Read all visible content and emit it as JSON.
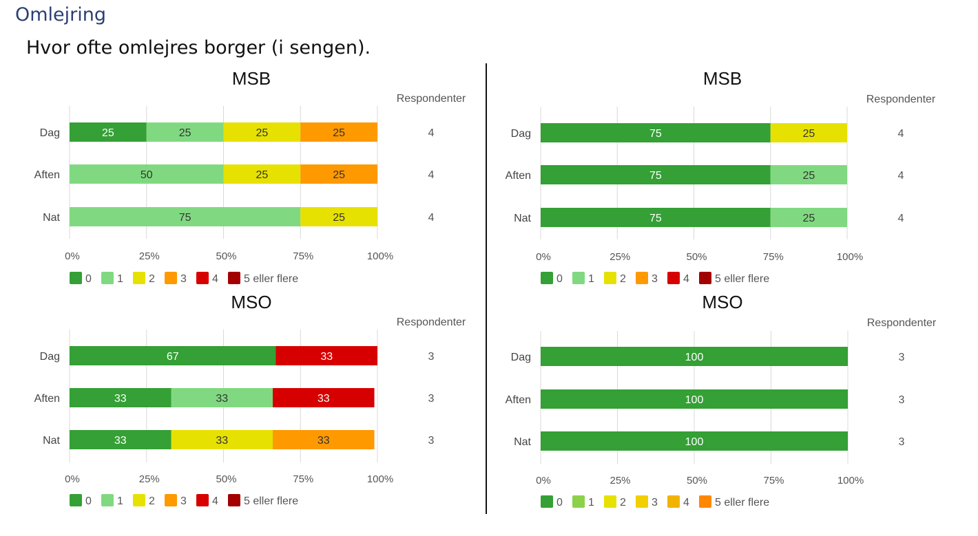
{
  "header": {
    "title": "Omlejring",
    "subtitle": "Hvor ofte omlejres borger (i sengen)."
  },
  "respondents_label": "Respondenter",
  "chart_data": [
    {
      "type": "bar",
      "stacked": true,
      "orientation": "horizontal",
      "percent": true,
      "title": "MSB",
      "categories": [
        "Dag",
        "Aften",
        "Nat"
      ],
      "xticks": [
        "0%",
        "25%",
        "50%",
        "75%",
        "100%"
      ],
      "xlim": [
        0,
        100
      ],
      "grid": true,
      "respondents": [
        4,
        4,
        4
      ],
      "legend_position": "bottom-left",
      "series": [
        {
          "name": "0",
          "color": "#34a035",
          "values": [
            25,
            0,
            0
          ]
        },
        {
          "name": "1",
          "color": "#80d980",
          "values": [
            25,
            50,
            75
          ]
        },
        {
          "name": "2",
          "color": "#e6e100",
          "values": [
            25,
            25,
            25
          ]
        },
        {
          "name": "3",
          "color": "#ff9900",
          "values": [
            25,
            25,
            0
          ]
        },
        {
          "name": "4",
          "color": "#d70000",
          "values": [
            0,
            0,
            0
          ]
        },
        {
          "name": "5 eller flere",
          "color": "#a30000",
          "values": [
            0,
            0,
            0
          ]
        }
      ]
    },
    {
      "type": "bar",
      "stacked": true,
      "orientation": "horizontal",
      "percent": true,
      "title": "MSB",
      "categories": [
        "Dag",
        "Aften",
        "Nat"
      ],
      "xticks": [
        "0%",
        "25%",
        "50%",
        "75%",
        "100%"
      ],
      "xlim": [
        0,
        100
      ],
      "grid": true,
      "respondents": [
        4,
        4,
        4
      ],
      "legend_position": "bottom-left",
      "series": [
        {
          "name": "0",
          "color": "#34a035",
          "values": [
            75,
            75,
            75
          ]
        },
        {
          "name": "1",
          "color": "#80d980",
          "values": [
            0,
            25,
            25
          ]
        },
        {
          "name": "2",
          "color": "#e6e100",
          "values": [
            25,
            0,
            0
          ]
        },
        {
          "name": "3",
          "color": "#ff9900",
          "values": [
            0,
            0,
            0
          ]
        },
        {
          "name": "4",
          "color": "#d70000",
          "values": [
            0,
            0,
            0
          ]
        },
        {
          "name": "5 eller flere",
          "color": "#a30000",
          "values": [
            0,
            0,
            0
          ]
        }
      ]
    },
    {
      "type": "bar",
      "stacked": true,
      "orientation": "horizontal",
      "percent": true,
      "title": "MSO",
      "categories": [
        "Dag",
        "Aften",
        "Nat"
      ],
      "xticks": [
        "0%",
        "25%",
        "50%",
        "75%",
        "100%"
      ],
      "xlim": [
        0,
        100
      ],
      "grid": true,
      "respondents": [
        3,
        3,
        3
      ],
      "legend_position": "bottom-left",
      "series": [
        {
          "name": "0",
          "color": "#34a035",
          "values": [
            67,
            33,
            33
          ]
        },
        {
          "name": "1",
          "color": "#80d980",
          "values": [
            0,
            33,
            0
          ]
        },
        {
          "name": "2",
          "color": "#e6e100",
          "values": [
            0,
            0,
            33
          ]
        },
        {
          "name": "3",
          "color": "#ff9900",
          "values": [
            0,
            0,
            33
          ]
        },
        {
          "name": "4",
          "color": "#d70000",
          "values": [
            33,
            33,
            0
          ]
        },
        {
          "name": "5 eller flere",
          "color": "#a30000",
          "values": [
            0,
            0,
            0
          ]
        }
      ]
    },
    {
      "type": "bar",
      "stacked": true,
      "orientation": "horizontal",
      "percent": true,
      "title": "MSO",
      "categories": [
        "Dag",
        "Aften",
        "Nat"
      ],
      "xticks": [
        "0%",
        "25%",
        "50%",
        "75%",
        "100%"
      ],
      "xlim": [
        0,
        100
      ],
      "grid": true,
      "respondents": [
        3,
        3,
        3
      ],
      "legend_position": "bottom-left",
      "series": [
        {
          "name": "0",
          "color": "#34a035",
          "values": [
            100,
            100,
            100
          ]
        },
        {
          "name": "1",
          "color": "#8bd14a",
          "values": [
            0,
            0,
            0
          ]
        },
        {
          "name": "2",
          "color": "#e6e100",
          "values": [
            0,
            0,
            0
          ]
        },
        {
          "name": "3",
          "color": "#f2cf00",
          "values": [
            0,
            0,
            0
          ]
        },
        {
          "name": "4",
          "color": "#f2b300",
          "values": [
            0,
            0,
            0
          ]
        },
        {
          "name": "5 eller flere",
          "color": "#ff8800",
          "values": [
            0,
            0,
            0
          ]
        }
      ]
    }
  ]
}
